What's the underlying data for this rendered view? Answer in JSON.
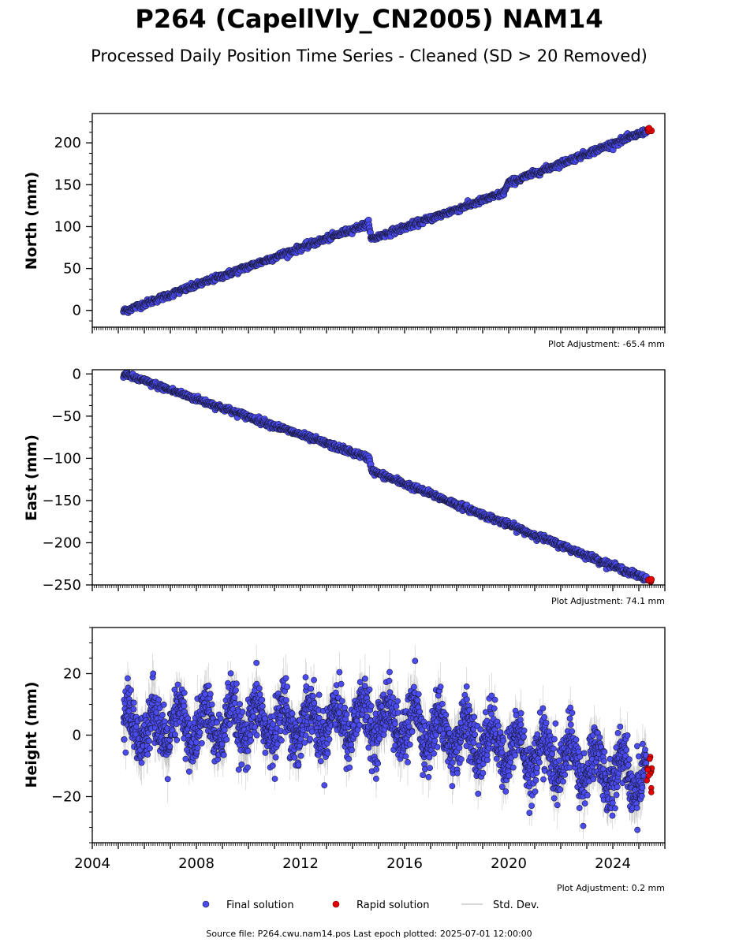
{
  "header": {
    "title": "P264 (CapellVly_CN2005) NAM14",
    "subtitle": "Processed Daily Position Time Series - Cleaned (SD > 20 Removed)"
  },
  "footer": {
    "source_text": "Source file: P264.cwu.nam14.pos  Last epoch plotted: 2025-07-01 12:00:00"
  },
  "legend": {
    "final_label": "Final solution",
    "rapid_label": "Rapid solution",
    "std_label": "Std. Dev."
  },
  "colors": {
    "final": "#4b4bf2",
    "rapid": "#e60000",
    "std_dev": "#b4b4b4",
    "marker_edge": "#1a1a3a"
  },
  "chart_data": [
    {
      "type": "scatter",
      "ylabel": "North (mm)",
      "adjustment_label": "Plot Adjustment: -65.4 mm",
      "xlim": [
        2004,
        2026
      ],
      "ylim": [
        -20,
        235
      ],
      "yticks": [
        0,
        50,
        100,
        150,
        200
      ],
      "show_x_tick_labels": false,
      "trend_points": [
        [
          2005.2,
          -1
        ],
        [
          2014.65,
          104
        ],
        [
          2014.7,
          85
        ],
        [
          2019.8,
          140
        ],
        [
          2020.0,
          152
        ],
        [
          2025.3,
          214
        ]
      ],
      "noise_mm": 1.8,
      "rapid": {
        "x_range": [
          2025.3,
          2025.5
        ],
        "y_range": [
          214,
          218
        ]
      },
      "grid": false
    },
    {
      "type": "scatter",
      "ylabel": "East (mm)",
      "adjustment_label": "Plot Adjustment: 74.1 mm",
      "xlim": [
        2004,
        2026
      ],
      "ylim": [
        -250,
        5
      ],
      "yticks": [
        0,
        -50,
        -100,
        -150,
        -200,
        -250
      ],
      "show_x_tick_labels": false,
      "trend_points": [
        [
          2005.2,
          0
        ],
        [
          2014.65,
          -100
        ],
        [
          2014.75,
          -115
        ],
        [
          2025.3,
          -243
        ]
      ],
      "noise_mm": 1.8,
      "rapid": {
        "x_range": [
          2025.3,
          2025.5
        ],
        "y_range": [
          -246,
          -242
        ]
      },
      "grid": false
    },
    {
      "type": "scatter",
      "ylabel": "Height (mm)",
      "adjustment_label": "Plot Adjustment: 0.2 mm",
      "xlim": [
        2004,
        2026
      ],
      "ylim": [
        -35,
        35
      ],
      "yticks": [
        20,
        0,
        -20
      ],
      "xticks": [
        2004,
        2008,
        2012,
        2016,
        2020,
        2024
      ],
      "show_x_tick_labels": true,
      "trend_points": [
        [
          2005.2,
          2
        ],
        [
          2015.0,
          5
        ],
        [
          2025.3,
          -14
        ]
      ],
      "seasonal_amplitude_mm": 6,
      "noise_mm": 4.5,
      "rapid": {
        "x_range": [
          2025.3,
          2025.5
        ],
        "y_range": [
          -19,
          -7
        ]
      },
      "grid": false
    }
  ]
}
